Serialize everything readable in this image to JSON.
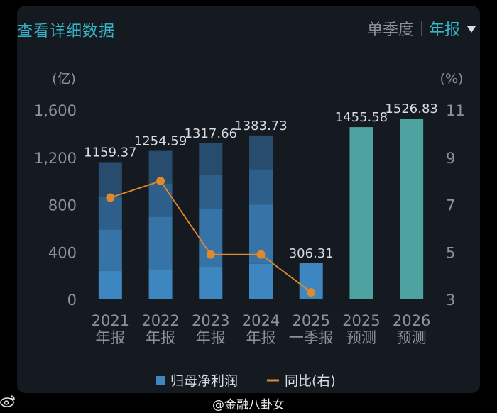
{
  "header": {
    "title": "查看详细数据",
    "tab_quarterly": "单季度",
    "tab_annual": "年报"
  },
  "footer": {
    "watermark": "@金融八卦女"
  },
  "colors": {
    "bar_actual": "#3e86c0",
    "bar_forecast": "#4ea29f",
    "line": "#e08a2c",
    "text": "#d9dde2",
    "axis": "#8a929c",
    "accent": "#36b6c6"
  },
  "chart_data": {
    "type": "bar",
    "categories": [
      [
        "2021",
        "年报"
      ],
      [
        "2022",
        "年报"
      ],
      [
        "2023",
        "年报"
      ],
      [
        "2024",
        "年报"
      ],
      [
        "2025",
        "一季报"
      ],
      [
        "2025",
        "预测"
      ],
      [
        "2026",
        "预测"
      ]
    ],
    "series": [
      {
        "name": "归母净利润",
        "values": [
          1159.37,
          1254.59,
          1317.66,
          1383.73,
          306.31,
          1455.58,
          1526.83
        ],
        "labels": [
          "1159.37",
          "1254.59",
          "1317.66",
          "1383.73",
          "306.31",
          "1455.58",
          "1526.83"
        ],
        "forecast": [
          false,
          false,
          false,
          false,
          false,
          true,
          true
        ],
        "quarterly_breakdown": [
          [
            240,
            350,
            275,
            295
          ],
          [
            255,
            445,
            280,
            275
          ],
          [
            280,
            485,
            290,
            265
          ],
          [
            300,
            500,
            300,
            285
          ],
          [
            306.31
          ],
          null,
          null
        ]
      },
      {
        "name": "同比(右)",
        "axis": "right",
        "values": [
          7.3,
          8.0,
          4.9,
          4.9,
          3.3,
          null,
          null
        ]
      }
    ],
    "ylabel_left": "(亿)",
    "ylabel_right": "(%)",
    "ylim_left": [
      0,
      1600
    ],
    "ylim_right": [
      3,
      11
    ],
    "yticks_left": [
      "0",
      "400",
      "800",
      "1,200",
      "1,600"
    ],
    "yticks_right": [
      "3",
      "5",
      "7",
      "9",
      "11"
    ],
    "legend": [
      {
        "label": "归母净利润",
        "marker": "square"
      },
      {
        "label": "同比(右)",
        "marker": "line"
      }
    ],
    "legend_position": "bottom"
  }
}
